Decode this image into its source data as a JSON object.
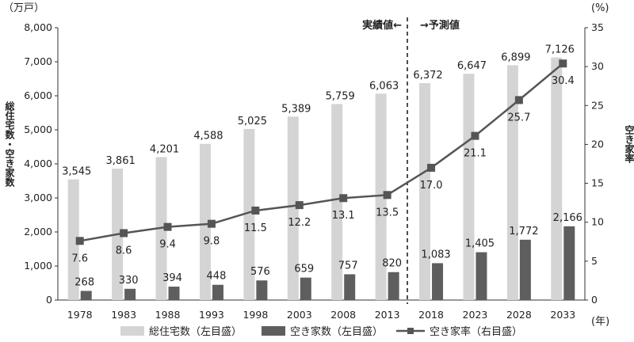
{
  "chart_data": {
    "type": "bar",
    "categories": [
      "1978",
      "1983",
      "1988",
      "1993",
      "1998",
      "2003",
      "2008",
      "2013",
      "2018",
      "2023",
      "2028",
      "2033"
    ],
    "series": [
      {
        "name": "総住宅数（左目盛）",
        "kind": "bar",
        "axis": "left",
        "color": "#d4d4d4",
        "values": [
          3545,
          3861,
          4201,
          4588,
          5025,
          5389,
          5759,
          6063,
          6372,
          6647,
          6899,
          7126
        ],
        "labels": [
          "3,545",
          "3,861",
          "4,201",
          "4,588",
          "5,025",
          "5,389",
          "5,759",
          "6,063",
          "6,372",
          "6,647",
          "6,899",
          "7,126"
        ]
      },
      {
        "name": "空き家数（左目盛）",
        "kind": "bar",
        "axis": "left",
        "color": "#5e5e5e",
        "values": [
          268,
          330,
          394,
          448,
          576,
          659,
          757,
          820,
          1083,
          1405,
          1772,
          2166
        ],
        "labels": [
          "268",
          "330",
          "394",
          "448",
          "576",
          "659",
          "757",
          "820",
          "1,083",
          "1,405",
          "1,772",
          "2,166"
        ]
      },
      {
        "name": "空き家率（右目盛）",
        "kind": "line",
        "axis": "right",
        "color": "#555555",
        "values": [
          7.6,
          8.6,
          9.4,
          9.8,
          11.5,
          12.2,
          13.1,
          13.5,
          17.0,
          21.1,
          25.7,
          30.4
        ],
        "labels": [
          "7.6",
          "8.6",
          "9.4",
          "9.8",
          "11.5",
          "12.2",
          "13.1",
          "13.5",
          "17.0",
          "21.1",
          "25.7",
          "30.4"
        ]
      }
    ],
    "left_axis": {
      "unit": "（万戸）",
      "title": "総住宅数・空き家数",
      "min": 0,
      "max": 8000,
      "ticks": [
        "0",
        "1,000",
        "2,000",
        "3,000",
        "4,000",
        "5,000",
        "6,000",
        "7,000",
        "8,000"
      ]
    },
    "right_axis": {
      "unit": "(%)",
      "title": "空き家率",
      "min": 0,
      "max": 35,
      "ticks": [
        "0",
        "5",
        "10",
        "15",
        "20",
        "25",
        "30",
        "35"
      ]
    },
    "x_unit": "(年)",
    "annotations": {
      "actual": "実績値←",
      "forecast": "→予測値"
    },
    "grid": false,
    "legend_position": "bottom"
  }
}
